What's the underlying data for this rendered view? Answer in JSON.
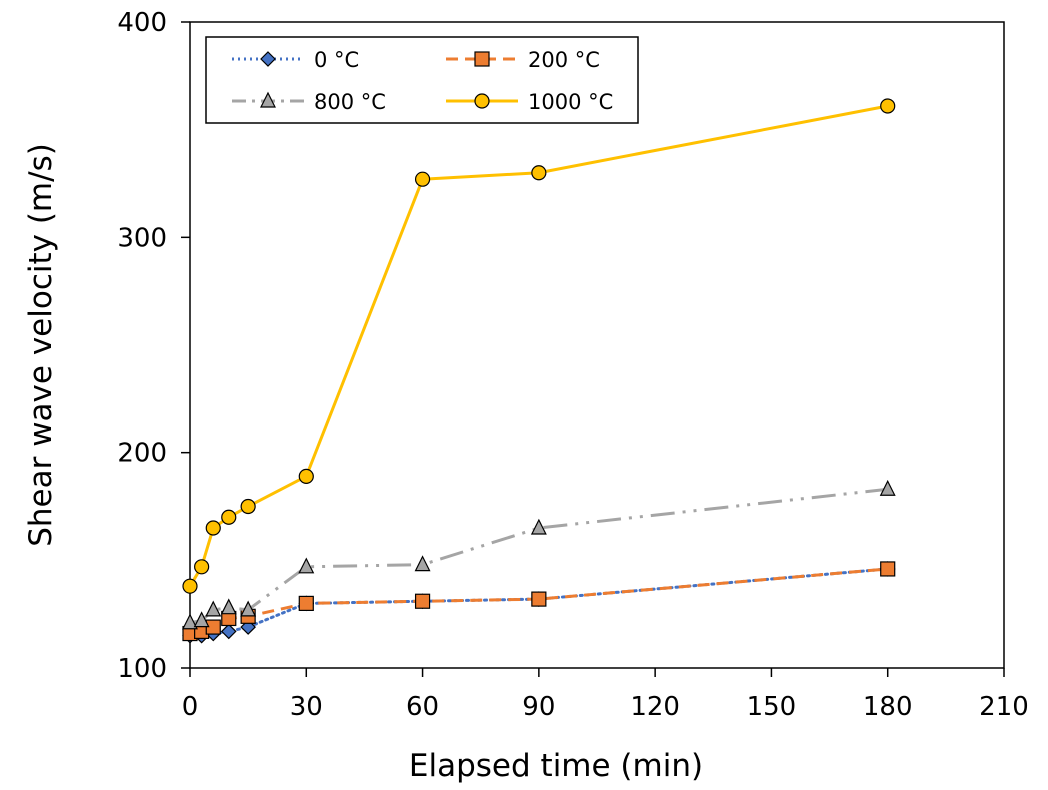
{
  "chart_data": {
    "type": "line",
    "title": "",
    "xlabel": "Elapsed time (min)",
    "ylabel": "Shear wave velocity (m/s)",
    "xlim": [
      0,
      210
    ],
    "ylim": [
      100,
      400
    ],
    "xticks": [
      0,
      30,
      60,
      90,
      120,
      150,
      180,
      210
    ],
    "yticks": [
      100,
      200,
      300,
      400
    ],
    "grid": false,
    "legend_position": "top-left",
    "series": [
      {
        "name": "0 °C",
        "color": "#4472C4",
        "marker": "diamond",
        "line_style": "dotted",
        "x": [
          0,
          3,
          6,
          10,
          15,
          30,
          60,
          90,
          180
        ],
        "y": [
          115,
          115,
          116,
          117,
          119,
          130,
          131,
          132,
          146
        ]
      },
      {
        "name": "200 °C",
        "color": "#ED7D31",
        "marker": "square",
        "line_style": "dashed",
        "x": [
          0,
          3,
          6,
          10,
          15,
          30,
          60,
          90,
          180
        ],
        "y": [
          116,
          117,
          119,
          123,
          124,
          130,
          131,
          132,
          146
        ]
      },
      {
        "name": "800 °C",
        "color": "#A5A5A5",
        "marker": "triangle",
        "line_style": "dash-dot-dot",
        "x": [
          0,
          3,
          6,
          10,
          15,
          30,
          60,
          90,
          180
        ],
        "y": [
          121,
          122,
          127,
          128,
          127,
          147,
          148,
          165,
          183
        ]
      },
      {
        "name": "1000 °C",
        "color": "#FFC000",
        "marker": "circle",
        "line_style": "solid",
        "x": [
          0,
          3,
          6,
          10,
          15,
          30,
          60,
          90,
          180
        ],
        "y": [
          138,
          147,
          165,
          170,
          175,
          189,
          327,
          330,
          361
        ]
      }
    ]
  }
}
